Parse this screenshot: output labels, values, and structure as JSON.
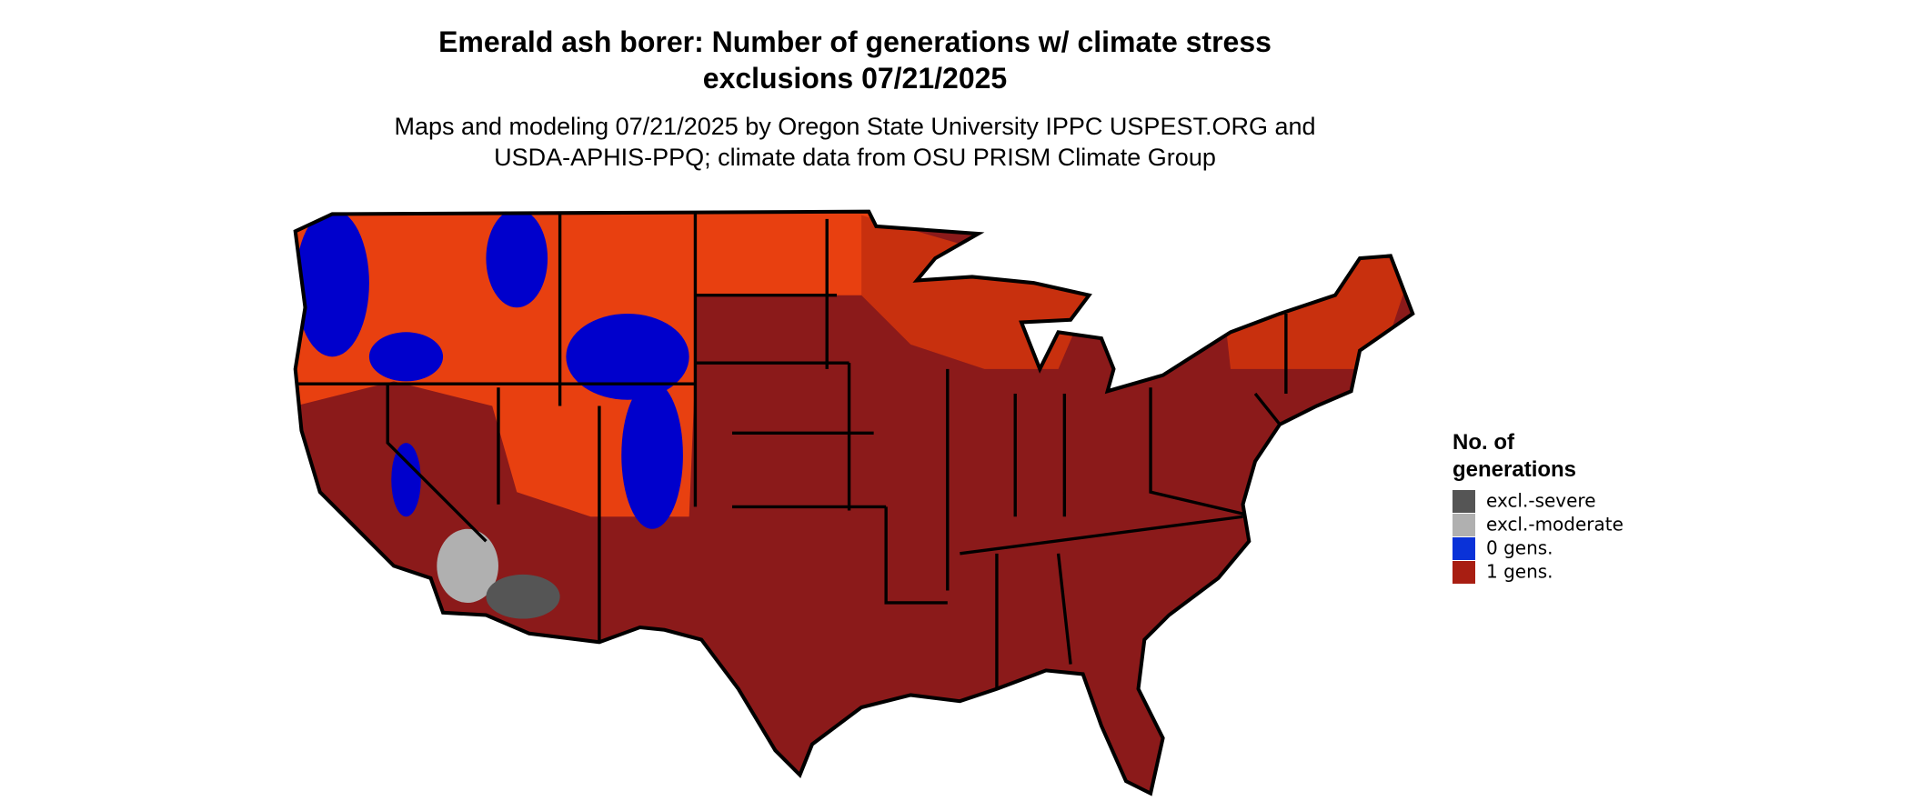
{
  "header": {
    "title": [
      "Emerald ash borer: Number of generations w/ climate stress",
      "exclusions 07/21/2025"
    ],
    "subtitle": [
      "Maps and modeling 07/21/2025 by Oregon State University IPPC USPEST.ORG and",
      "USDA-APHIS-PPQ; climate data from OSU PRISM Climate Group"
    ]
  },
  "legend": {
    "title": [
      "No. of",
      "generations"
    ],
    "items": [
      {
        "label": "excl.-severe",
        "color": "#555555"
      },
      {
        "label": "excl.-moderate",
        "color": "#b0b0b0"
      },
      {
        "label": "0 gens.",
        "color": "#0a32d8"
      },
      {
        "label": "1 gens.",
        "color": "#a81e12"
      }
    ]
  }
}
